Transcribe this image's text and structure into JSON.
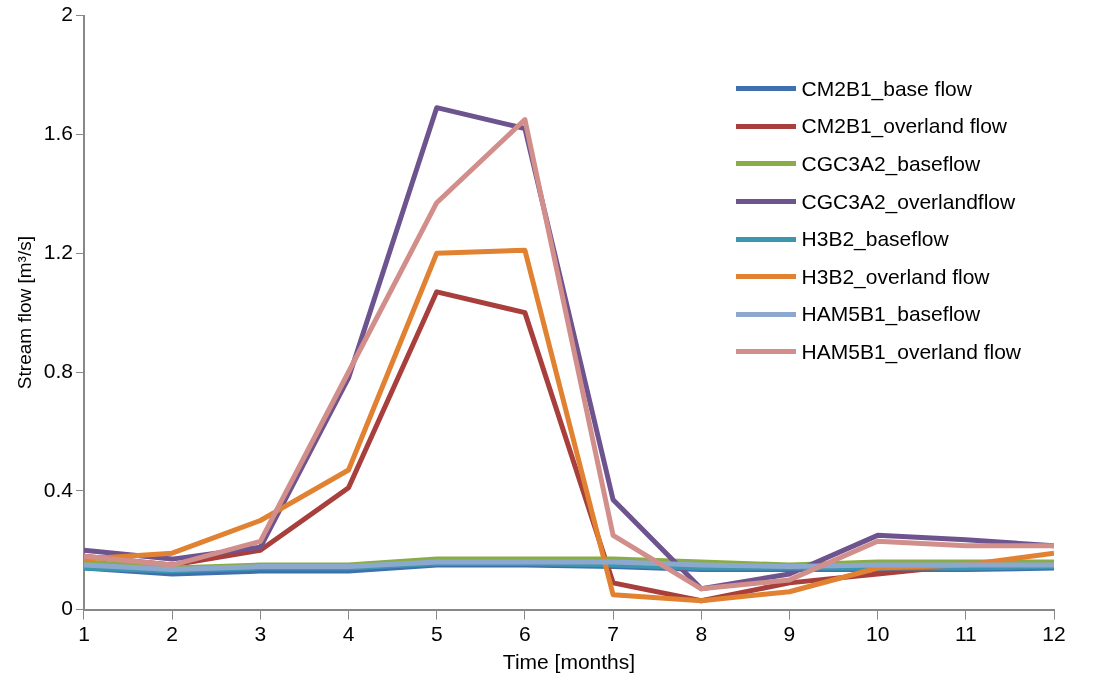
{
  "chart_data": {
    "type": "line",
    "xlabel": "Time [months]",
    "ylabel": "Stream flow [m³/s]",
    "x": [
      1,
      2,
      3,
      4,
      5,
      6,
      7,
      8,
      9,
      10,
      11,
      12
    ],
    "xlim": [
      1,
      12
    ],
    "xticks": [
      1,
      2,
      3,
      4,
      5,
      6,
      7,
      8,
      9,
      10,
      11,
      12
    ],
    "ylim": [
      0,
      2
    ],
    "yticks": [
      0,
      0.4,
      0.8,
      1.2,
      1.6,
      2
    ],
    "grid": false,
    "legend": "top right",
    "marker": "none",
    "line_style": "solid",
    "series": [
      {
        "name": "CM2B1_base flow",
        "color": "#3f6fae",
        "values": [
          0.14,
          0.12,
          0.13,
          0.13,
          0.15,
          0.15,
          0.145,
          0.135,
          0.135,
          0.135,
          0.135,
          0.14
        ]
      },
      {
        "name": "CM2B1_overland flow",
        "color": "#a83f3c",
        "values": [
          0.18,
          0.15,
          0.2,
          0.41,
          1.07,
          1.0,
          0.09,
          0.03,
          0.09,
          0.12,
          0.15,
          null
        ]
      },
      {
        "name": "CGC3A2_baseflow",
        "color": "#8aac47",
        "values": [
          0.16,
          0.14,
          0.15,
          0.15,
          0.17,
          0.17,
          0.17,
          0.16,
          0.15,
          0.16,
          0.16,
          0.16
        ]
      },
      {
        "name": "CGC3A2_overlandflow",
        "color": "#6e548f",
        "values": [
          0.2,
          0.17,
          0.21,
          0.78,
          1.69,
          1.62,
          0.37,
          0.07,
          0.12,
          0.25,
          0.235,
          0.215
        ]
      },
      {
        "name": "H3B2_baseflow",
        "color": "#3a97ae",
        "values": [
          0.14,
          0.13,
          0.14,
          0.14,
          0.155,
          0.155,
          0.15,
          0.14,
          0.14,
          0.14,
          0.14,
          0.145
        ]
      },
      {
        "name": "H3B2_overland flow",
        "color": "#e08232",
        "values": [
          0.17,
          0.19,
          0.3,
          0.47,
          1.2,
          1.21,
          0.05,
          0.03,
          0.06,
          0.14,
          0.15,
          0.19
        ]
      },
      {
        "name": "HAM5B1_baseflow",
        "color": "#8da8cf",
        "values": [
          0.15,
          0.135,
          0.145,
          0.145,
          0.16,
          0.16,
          0.16,
          0.15,
          0.145,
          0.15,
          0.15,
          0.15
        ]
      },
      {
        "name": "HAM5B1_overland flow",
        "color": "#d28e8b",
        "values": [
          0.18,
          0.15,
          0.23,
          0.8,
          1.37,
          1.65,
          0.25,
          0.07,
          0.1,
          0.23,
          0.215,
          0.215
        ]
      }
    ]
  }
}
